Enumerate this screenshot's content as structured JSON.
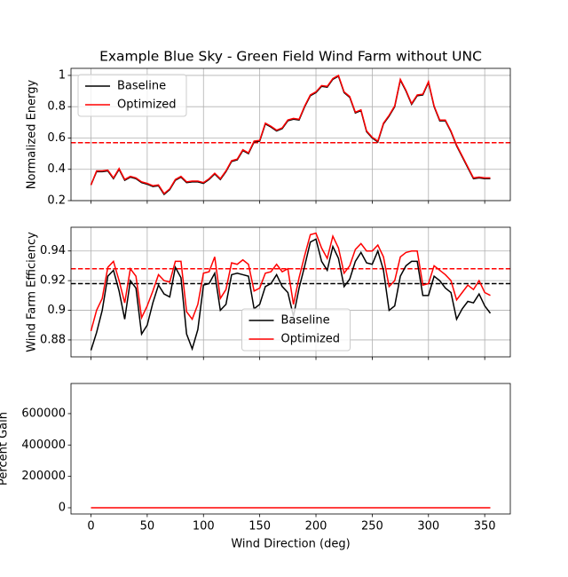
{
  "chart_data": [
    {
      "type": "line",
      "title": "Example Blue Sky - Green Field Wind Farm without UNC",
      "ylabel": "Normalized Energy",
      "x": [
        0,
        5,
        10,
        15,
        20,
        25,
        30,
        35,
        40,
        45,
        50,
        55,
        60,
        65,
        70,
        75,
        80,
        85,
        90,
        95,
        100,
        105,
        110,
        115,
        120,
        125,
        130,
        135,
        140,
        145,
        150,
        155,
        160,
        165,
        170,
        175,
        180,
        185,
        190,
        195,
        200,
        205,
        210,
        215,
        220,
        225,
        230,
        235,
        240,
        245,
        250,
        255,
        260,
        265,
        270,
        275,
        280,
        285,
        290,
        295,
        300,
        305,
        310,
        315,
        320,
        325,
        330,
        335,
        340,
        345,
        350,
        355
      ],
      "series": [
        {
          "name": "Baseline",
          "color": "#000000",
          "mean": 0.57,
          "values": [
            0.3,
            0.385,
            0.385,
            0.39,
            0.34,
            0.4,
            0.33,
            0.35,
            0.34,
            0.315,
            0.305,
            0.29,
            0.295,
            0.24,
            0.27,
            0.33,
            0.35,
            0.315,
            0.32,
            0.32,
            0.31,
            0.335,
            0.37,
            0.335,
            0.385,
            0.45,
            0.46,
            0.52,
            0.5,
            0.575,
            0.58,
            0.69,
            0.67,
            0.645,
            0.66,
            0.71,
            0.72,
            0.715,
            0.8,
            0.87,
            0.89,
            0.93,
            0.925,
            0.975,
            0.995,
            0.89,
            0.86,
            0.76,
            0.775,
            0.64,
            0.6,
            0.575,
            0.69,
            0.74,
            0.8,
            0.97,
            0.9,
            0.815,
            0.87,
            0.875,
            0.955,
            0.8,
            0.71,
            0.71,
            0.64,
            0.55,
            0.48,
            0.41,
            0.34,
            0.345,
            0.34,
            0.34
          ]
        },
        {
          "name": "Optimized",
          "color": "#ff0000",
          "mean": 0.57,
          "values": [
            0.3,
            0.39,
            0.39,
            0.395,
            0.345,
            0.405,
            0.335,
            0.355,
            0.345,
            0.32,
            0.31,
            0.295,
            0.3,
            0.245,
            0.275,
            0.335,
            0.355,
            0.32,
            0.325,
            0.325,
            0.315,
            0.34,
            0.375,
            0.34,
            0.39,
            0.455,
            0.465,
            0.525,
            0.505,
            0.58,
            0.585,
            0.695,
            0.675,
            0.65,
            0.665,
            0.715,
            0.725,
            0.72,
            0.805,
            0.875,
            0.895,
            0.935,
            0.93,
            0.98,
            1.0,
            0.895,
            0.865,
            0.765,
            0.78,
            0.645,
            0.605,
            0.58,
            0.695,
            0.745,
            0.805,
            0.975,
            0.905,
            0.82,
            0.875,
            0.88,
            0.96,
            0.805,
            0.715,
            0.715,
            0.645,
            0.555,
            0.485,
            0.415,
            0.345,
            0.35,
            0.345,
            0.345
          ]
        }
      ],
      "xlim": [
        -17.75,
        372.75
      ],
      "xticks": [
        0,
        50,
        100,
        150,
        200,
        250,
        300,
        350
      ],
      "ylim": [
        0.2,
        1.045
      ],
      "yticks": [
        0.2,
        0.4,
        0.6,
        0.8,
        1.0
      ],
      "grid": true,
      "legend": "upper left"
    },
    {
      "type": "line",
      "ylabel": "Wind Farm Efficiency",
      "x": [
        0,
        5,
        10,
        15,
        20,
        25,
        30,
        35,
        40,
        45,
        50,
        55,
        60,
        65,
        70,
        75,
        80,
        85,
        90,
        95,
        100,
        105,
        110,
        115,
        120,
        125,
        130,
        135,
        140,
        145,
        150,
        155,
        160,
        165,
        170,
        175,
        180,
        185,
        190,
        195,
        200,
        205,
        210,
        215,
        220,
        225,
        230,
        235,
        240,
        245,
        250,
        255,
        260,
        265,
        270,
        275,
        280,
        285,
        290,
        295,
        300,
        305,
        310,
        315,
        320,
        325,
        330,
        335,
        340,
        345,
        350,
        355
      ],
      "series": [
        {
          "name": "Baseline",
          "color": "#000000",
          "mean": 0.918,
          "values": [
            0.873,
            0.885,
            0.9,
            0.923,
            0.927,
            0.913,
            0.894,
            0.92,
            0.915,
            0.884,
            0.89,
            0.905,
            0.917,
            0.911,
            0.909,
            0.929,
            0.922,
            0.884,
            0.874,
            0.887,
            0.917,
            0.918,
            0.925,
            0.9,
            0.904,
            0.924,
            0.925,
            0.924,
            0.923,
            0.901,
            0.904,
            0.916,
            0.918,
            0.924,
            0.916,
            0.912,
            0.896,
            0.915,
            0.93,
            0.946,
            0.948,
            0.933,
            0.927,
            0.943,
            0.935,
            0.916,
            0.921,
            0.933,
            0.939,
            0.932,
            0.931,
            0.94,
            0.927,
            0.9,
            0.903,
            0.923,
            0.93,
            0.933,
            0.933,
            0.91,
            0.91,
            0.923,
            0.92,
            0.915,
            0.912,
            0.894,
            0.901,
            0.906,
            0.905,
            0.911,
            0.903,
            0.898
          ]
        },
        {
          "name": "Optimized",
          "color": "#ff0000",
          "mean": 0.928,
          "values": [
            0.886,
            0.9,
            0.908,
            0.929,
            0.933,
            0.92,
            0.905,
            0.928,
            0.923,
            0.895,
            0.903,
            0.913,
            0.924,
            0.92,
            0.919,
            0.933,
            0.933,
            0.899,
            0.894,
            0.904,
            0.925,
            0.926,
            0.936,
            0.908,
            0.914,
            0.932,
            0.931,
            0.934,
            0.931,
            0.913,
            0.915,
            0.925,
            0.926,
            0.931,
            0.926,
            0.928,
            0.904,
            0.922,
            0.937,
            0.951,
            0.952,
            0.942,
            0.935,
            0.95,
            0.942,
            0.925,
            0.93,
            0.941,
            0.945,
            0.94,
            0.94,
            0.944,
            0.936,
            0.916,
            0.92,
            0.936,
            0.939,
            0.94,
            0.94,
            0.917,
            0.918,
            0.93,
            0.927,
            0.924,
            0.92,
            0.907,
            0.912,
            0.917,
            0.914,
            0.92,
            0.912,
            0.91
          ]
        }
      ],
      "xlim": [
        -17.75,
        372.75
      ],
      "xticks": [
        0,
        50,
        100,
        150,
        200,
        250,
        300,
        350
      ],
      "ylim": [
        0.8686,
        0.956
      ],
      "yticks": [
        0.88,
        0.9,
        0.92,
        0.94
      ],
      "grid": true,
      "legend": "lower center"
    },
    {
      "type": "line",
      "ylabel": "Percent Gain",
      "xlabel": "Wind Direction (deg)",
      "x": [
        0,
        5,
        10,
        15,
        20,
        25,
        30,
        35,
        40,
        45,
        50,
        55,
        60,
        65,
        70,
        75,
        80,
        85,
        90,
        95,
        100,
        105,
        110,
        115,
        120,
        125,
        130,
        135,
        140,
        145,
        150,
        155,
        160,
        165,
        170,
        175,
        180,
        185,
        190,
        195,
        200,
        205,
        210,
        215,
        220,
        225,
        230,
        235,
        240,
        245,
        250,
        255,
        260,
        265,
        270,
        275,
        280,
        285,
        290,
        295,
        300,
        305,
        310,
        315,
        320,
        325,
        330,
        335,
        340,
        345,
        350,
        355
      ],
      "values": [
        1.4,
        1.7,
        0.9,
        0.7,
        0.7,
        0.8,
        1.2,
        0.9,
        0.9,
        1.2,
        1.5,
        0.9,
        0.8,
        1.0,
        1.1,
        0.4,
        1.2,
        1.7,
        2.3,
        1.9,
        0.9,
        0.9,
        1.2,
        0.9,
        1.1,
        0.9,
        0.6,
        1.1,
        0.9,
        1.3,
        1.2,
        1.0,
        0.9,
        0.8,
        1.1,
        1.8,
        0.9,
        0.8,
        0.8,
        0.5,
        0.4,
        1.0,
        0.9,
        0.7,
        0.7,
        1.0,
        1.0,
        0.9,
        0.6,
        0.9,
        1.0,
        0.4,
        1.0,
        1.8,
        1.9,
        1.4,
        1.0,
        0.8,
        0.8,
        0.8,
        0.9,
        0.8,
        0.8,
        1.0,
        0.9,
        1.5,
        1.2,
        1.2,
        1.0,
        1.0,
        1.0,
        1.3
      ],
      "color": "#ff0000",
      "xlim": [
        -17.75,
        372.75
      ],
      "xticks": [
        0,
        50,
        100,
        150,
        200,
        250,
        300,
        350
      ],
      "ylim": [
        -39600,
        792000
      ],
      "yticks": [
        0,
        200000,
        400000,
        600000
      ],
      "grid": false
    }
  ]
}
